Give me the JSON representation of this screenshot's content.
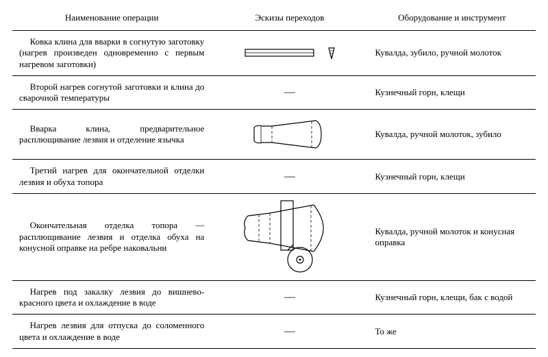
{
  "headers": {
    "operation": "Наименование операции",
    "sketch": "Эскизы переходов",
    "equipment": "Оборудование и инструмент"
  },
  "rows": [
    {
      "operation": "Ковка клина для вварки в согнутую заготовку (нагрев произведен одновременно с первым нагревом заготовки)",
      "sketch": "bar-wedge",
      "equipment": "Кувалда, зубило, ручной молоток"
    },
    {
      "operation": "Второй нагрев согнутой заготовки и клина до сварочной температуры",
      "sketch": "dash",
      "equipment": "Кузнечный горн, клещи"
    },
    {
      "operation": "Вварка клина, предварительное расплющивание лезвия и отделение язычка",
      "sketch": "axe-1",
      "equipment": "Кувалда, ручной молоток, зубило"
    },
    {
      "operation": "Третий нагрев для окончательной отделки лезвия и обуха топора",
      "sketch": "dash",
      "equipment": "Кузнечный горн, клещи"
    },
    {
      "operation": "Окончательная отделка топора — расплющивание лезвия и отделка обуха на конусной оправке на ребре наковальни",
      "sketch": "axe-2",
      "equipment": "Кувалда, ручной молоток и конусная оправка"
    },
    {
      "operation": "Нагрев под закалку лезвия до вишнево-красного цвета и охлаждение в воде",
      "sketch": "dash",
      "equipment": "Кузнечный горн, клещи, бак с водой"
    },
    {
      "operation": "Нагрев лезвия для отпуска до соломенного цвета и охлаждение в воде",
      "sketch": "dash",
      "equipment": "То же"
    }
  ],
  "dash_glyph": "—",
  "stroke": "#000000",
  "stroke_width": 1.2
}
